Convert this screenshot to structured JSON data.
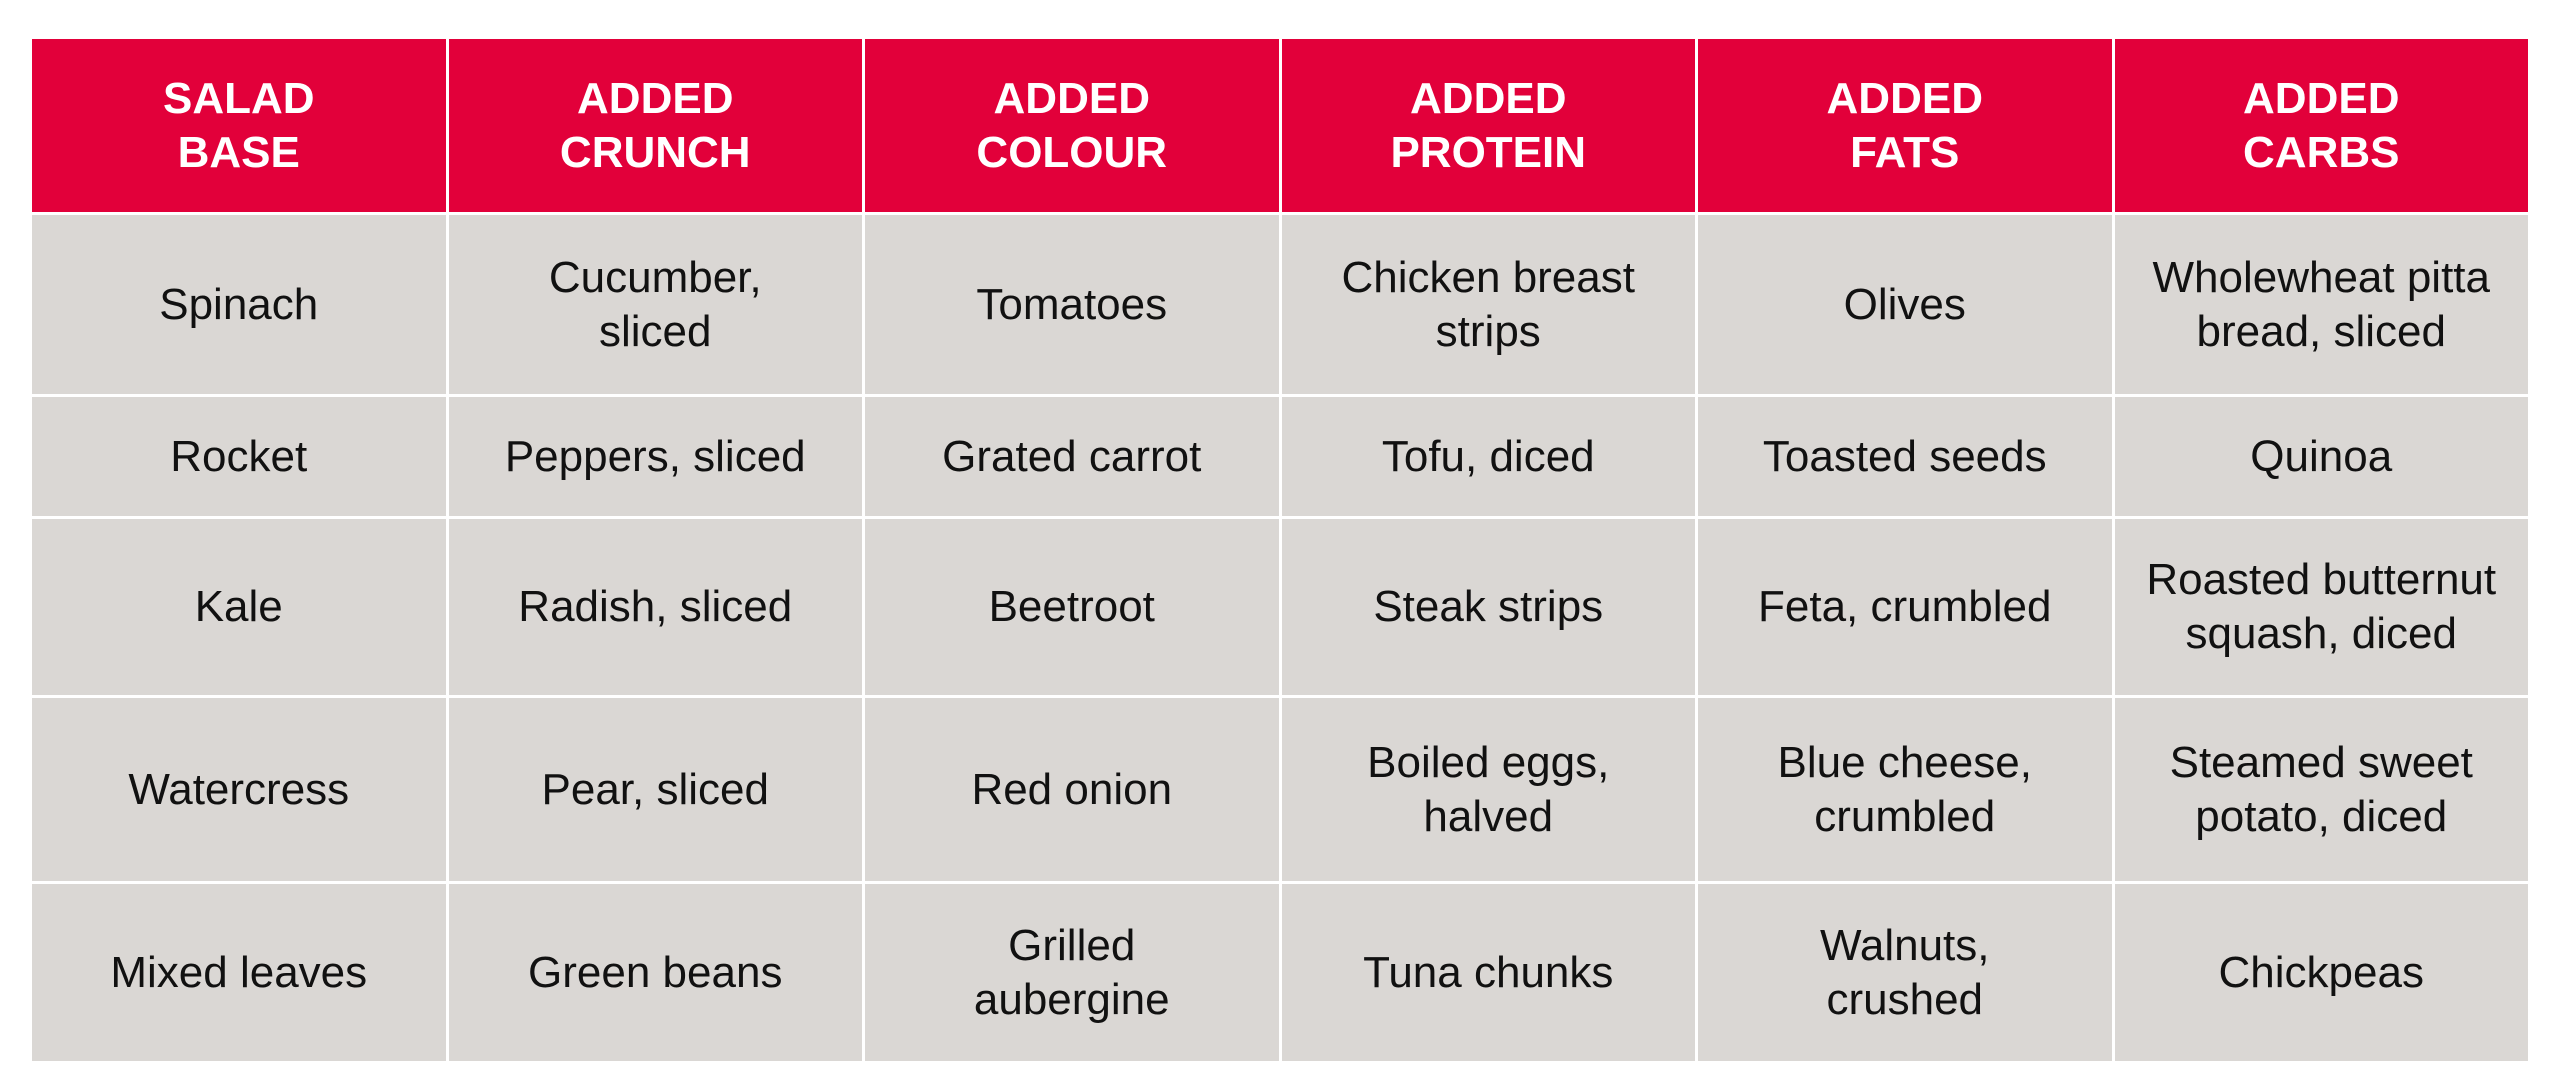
{
  "colors": {
    "header_bg": "#e2003a",
    "cell_bg": "#dad7d4",
    "header_text": "#ffffff"
  },
  "headers": [
    "SALAD\nBASE",
    "ADDED\nCRUNCH",
    "ADDED\nCOLOUR",
    "ADDED\nPROTEIN",
    "ADDED\nFATS",
    "ADDED\nCARBS"
  ],
  "rows": [
    [
      "Spinach",
      "Cucumber,\nsliced",
      "Tomatoes",
      "Chicken breast\nstrips",
      "Olives",
      "Wholewheat pitta\nbread, sliced"
    ],
    [
      "Rocket",
      "Peppers, sliced",
      "Grated carrot",
      "Tofu, diced",
      "Toasted seeds",
      "Quinoa"
    ],
    [
      "Kale",
      "Radish, sliced",
      "Beetroot",
      "Steak strips",
      "Feta, crumbled",
      "Roasted butternut\nsquash, diced"
    ],
    [
      "Watercress",
      "Pear, sliced",
      "Red onion",
      "Boiled eggs,\nhalved",
      "Blue cheese,\ncrumbled",
      "Steamed sweet\npotato, diced"
    ],
    [
      "Mixed leaves",
      "Green beans",
      "Grilled\naubergine",
      "Tuna chunks",
      "Walnuts,\ncrushed",
      "Chickpeas"
    ]
  ]
}
